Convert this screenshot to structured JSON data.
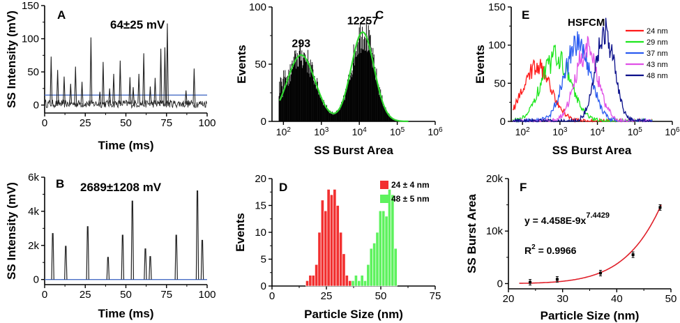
{
  "chart_data": [
    {
      "panel": "A",
      "type": "line",
      "annotation": "64±25 mV",
      "xlabel": "Time (ms)",
      "ylabel": "SS Intensity (mV)",
      "xlim": [
        0,
        100
      ],
      "ylim": [
        -12,
        150
      ],
      "x_ticks": [
        0,
        25,
        50,
        75,
        100
      ],
      "y_ticks": [
        0,
        50,
        100,
        150
      ],
      "threshold": 15,
      "baseline": 2,
      "peaks": [
        {
          "x": 4,
          "y": 73
        },
        {
          "x": 8,
          "y": 53
        },
        {
          "x": 12,
          "y": 43
        },
        {
          "x": 16,
          "y": 32
        },
        {
          "x": 19,
          "y": 58
        },
        {
          "x": 23,
          "y": 35
        },
        {
          "x": 28.5,
          "y": 102
        },
        {
          "x": 34,
          "y": 20
        },
        {
          "x": 36,
          "y": 65
        },
        {
          "x": 40,
          "y": 25
        },
        {
          "x": 42.5,
          "y": 47
        },
        {
          "x": 46.5,
          "y": 67
        },
        {
          "x": 52.5,
          "y": 42
        },
        {
          "x": 54.5,
          "y": 27
        },
        {
          "x": 58,
          "y": 47
        },
        {
          "x": 61,
          "y": 78
        },
        {
          "x": 65,
          "y": 28
        },
        {
          "x": 68,
          "y": 41
        },
        {
          "x": 71.5,
          "y": 85
        },
        {
          "x": 74,
          "y": 87
        },
        {
          "x": 75.5,
          "y": 123
        },
        {
          "x": 87,
          "y": 22
        },
        {
          "x": 92,
          "y": 55
        }
      ],
      "colors": {
        "trace": "#222222",
        "threshold": "#4a6fc6"
      }
    },
    {
      "panel": "B",
      "type": "line",
      "annotation": "2689±1208 mV",
      "xlabel": "Time (ms)",
      "ylabel": "SS Intensity (mV)",
      "xlim": [
        0,
        100
      ],
      "ylim": [
        -300,
        6000
      ],
      "x_ticks": [
        0,
        25,
        50,
        75,
        100
      ],
      "y_ticks": [
        0,
        2000,
        4000,
        6000
      ],
      "y_tick_labels": [
        "0",
        "2k",
        "4k",
        "6k"
      ],
      "threshold": 0,
      "peaks": [
        {
          "x": 5,
          "y": 2700
        },
        {
          "x": 13,
          "y": 1950
        },
        {
          "x": 26.5,
          "y": 3100
        },
        {
          "x": 39,
          "y": 1300
        },
        {
          "x": 48,
          "y": 2600
        },
        {
          "x": 54,
          "y": 4600
        },
        {
          "x": 62,
          "y": 1800
        },
        {
          "x": 65,
          "y": 1350
        },
        {
          "x": 81,
          "y": 2600
        },
        {
          "x": 94,
          "y": 5200
        },
        {
          "x": 97,
          "y": 2300
        }
      ],
      "colors": {
        "trace": "#222222",
        "threshold": "#4a6fc6"
      }
    },
    {
      "panel": "C",
      "type": "histogram",
      "xlabel": "SS Burst Area",
      "ylabel": "Events",
      "x_scale": "log",
      "xlim": [
        50,
        1000000
      ],
      "ylim": [
        0,
        100
      ],
      "x_ticks": [
        100,
        1000,
        10000,
        100000,
        1000000
      ],
      "x_tick_labels": [
        "10^2",
        "10^3",
        "10^4",
        "10^5",
        "10^6"
      ],
      "y_ticks": [
        0,
        50,
        100
      ],
      "peak_labels": [
        {
          "x": 293,
          "y": 60,
          "text": "293"
        },
        {
          "x": 12257,
          "y": 80,
          "text": "12257"
        }
      ],
      "components": [
        {
          "center": 293,
          "height": 58,
          "width_decades": 0.37
        },
        {
          "center": 12257,
          "height": 78,
          "width_decades": 0.3
        }
      ],
      "colors": {
        "bars": "#000000",
        "fit": "#2fd62f"
      }
    },
    {
      "panel": "D",
      "type": "bar",
      "xlabel": "Particle Size (nm)",
      "ylabel": "Events",
      "xlim": [
        0,
        75
      ],
      "ylim": [
        0,
        20
      ],
      "x_ticks": [
        0,
        25,
        50,
        75
      ],
      "y_ticks": [
        0,
        5,
        10,
        15,
        20
      ],
      "bin_width": 1.4,
      "series": [
        {
          "name": "24 ± 4 nm",
          "color": "#f23030",
          "x": [
            15.5,
            16.9,
            18.3,
            19.7,
            21.1,
            22.5,
            23.9,
            25.3,
            26.7,
            28.1,
            29.5,
            30.9,
            32.3,
            33.7,
            35.1
          ],
          "values": [
            1,
            2,
            2,
            4,
            10,
            16,
            14,
            18,
            17,
            18,
            15,
            10,
            6,
            2,
            1
          ]
        },
        {
          "name": "48 ± 5 nm",
          "color": "#5ef25e",
          "x": [
            36.5,
            37.9,
            39.3,
            40.7,
            42.1,
            43.5,
            44.9,
            46.3,
            47.7,
            49.1,
            50.5,
            51.9,
            53.3,
            54.7,
            56.1
          ],
          "values": [
            1,
            2,
            1,
            2,
            1,
            4,
            7,
            8,
            10,
            14,
            14,
            13,
            18,
            17,
            7
          ]
        }
      ]
    },
    {
      "panel": "E",
      "type": "line",
      "title": "HSFCM",
      "xlabel": "SS Burst Area",
      "ylabel": "Events",
      "x_scale": "log",
      "xlim": [
        50,
        1000000
      ],
      "ylim": [
        0,
        150
      ],
      "x_ticks": [
        100,
        1000,
        10000,
        100000,
        1000000
      ],
      "x_tick_labels": [
        "10^2",
        "10^3",
        "10^4",
        "10^5",
        "10^6"
      ],
      "y_ticks": [
        0,
        50,
        100,
        150
      ],
      "series": [
        {
          "name": "24 nm",
          "color": "#ff1a1a",
          "center": 250,
          "height": 70,
          "width_decades": 0.38
        },
        {
          "name": "29 nm",
          "color": "#1ee61e",
          "center": 800,
          "height": 85,
          "width_decades": 0.38
        },
        {
          "name": "37 nm",
          "color": "#2a5bf0",
          "center": 3000,
          "height": 102,
          "width_decades": 0.34
        },
        {
          "name": "43 nm",
          "color": "#e050e6",
          "center": 5200,
          "height": 95,
          "width_decades": 0.3
        },
        {
          "name": "48 nm",
          "color": "#0a0f8a",
          "center": 16000,
          "height": 118,
          "width_decades": 0.25
        }
      ]
    },
    {
      "panel": "F",
      "type": "scatter",
      "xlabel": "Particle Size (nm)",
      "ylabel": "SS Burst Area",
      "xlim": [
        20,
        50
      ],
      "ylim": [
        -1000,
        20000
      ],
      "x_ticks": [
        20,
        30,
        40,
        50
      ],
      "y_ticks": [
        0,
        10000,
        20000
      ],
      "y_tick_labels": [
        "0",
        "10k",
        "20k"
      ],
      "points": [
        {
          "x": 24,
          "y": 250
        },
        {
          "x": 29,
          "y": 800
        },
        {
          "x": 37,
          "y": 2000
        },
        {
          "x": 43,
          "y": 5500
        },
        {
          "x": 48,
          "y": 14500
        }
      ],
      "fit_coeff": 4.458e-09,
      "fit_exponent": 7.4429,
      "equation_main": "y = 4.458E-9x",
      "equation_exp": "7.4429",
      "r2_prefix": "R",
      "r2_sup": "2",
      "r2_value": " = 0.9966",
      "colors": {
        "fit": "#e0202a",
        "points": "#000000"
      }
    }
  ]
}
